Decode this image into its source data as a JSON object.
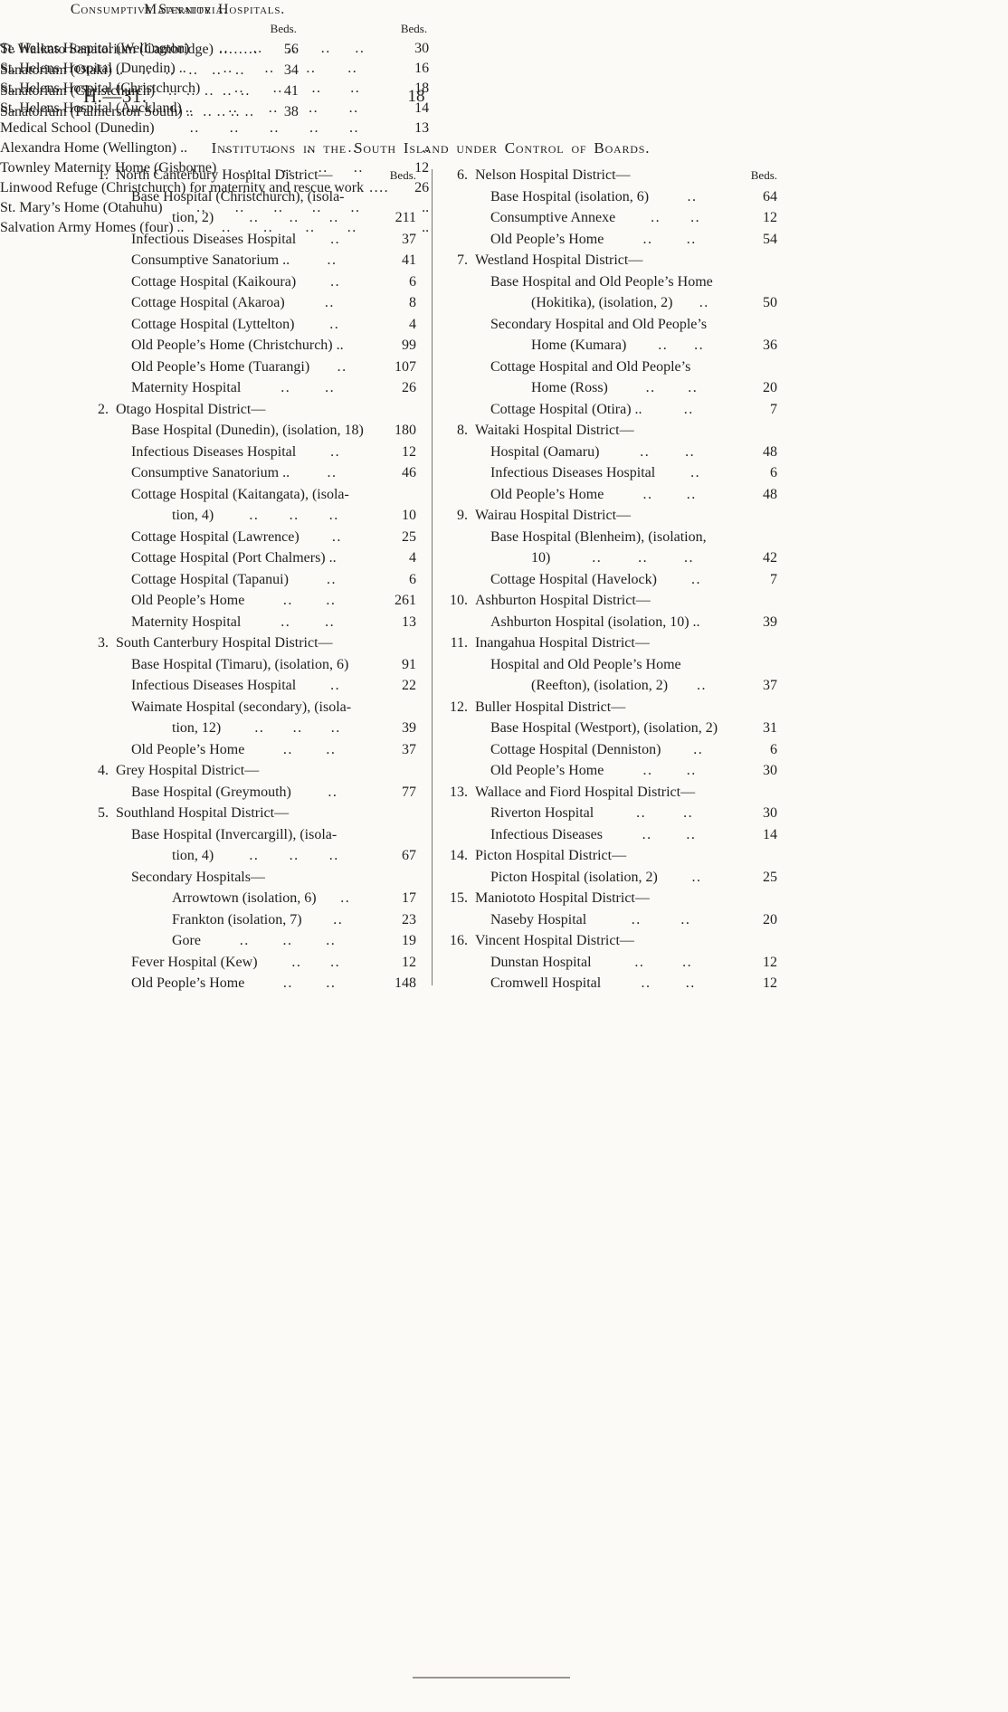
{
  "page": {
    "doc_ref": "H.—31.",
    "page_number": "18"
  },
  "boards": {
    "title": "Institutions in the South Island under Control of Boards.",
    "beds_label": "Beds.",
    "columns": [
      [
        {
          "num": "1.",
          "name": "North Canterbury Hospital District—",
          "rows": [
            {
              "t": "Base Hospital (Christchurch), (isola-",
              "i": 1,
              "d": 0,
              "b": ""
            },
            {
              "t": "tion, 2)",
              "i": 2,
              "d": 3,
              "b": "211"
            },
            {
              "t": "Infectious Diseases Hospital",
              "i": 1,
              "d": 1,
              "b": "37"
            },
            {
              "t": "Consumptive Sanatorium ..",
              "i": 1,
              "d": 1,
              "b": "41"
            },
            {
              "t": "Cottage Hospital (Kaikoura)",
              "i": 1,
              "d": 1,
              "b": "6"
            },
            {
              "t": "Cottage Hospital (Akaroa)",
              "i": 1,
              "d": 1,
              "b": "8"
            },
            {
              "t": "Cottage Hospital (Lyttelton)",
              "i": 1,
              "d": 1,
              "b": "4"
            },
            {
              "t": "Old People’s Home (Christchurch) ..",
              "i": 1,
              "d": 0,
              "b": "99"
            },
            {
              "t": "Old People’s Home (Tuarangi)",
              "i": 1,
              "d": 1,
              "b": "107"
            },
            {
              "t": "Maternity Hospital",
              "i": 1,
              "d": 2,
              "b": "26"
            }
          ]
        },
        {
          "num": "2.",
          "name": "Otago Hospital District—",
          "rows": [
            {
              "t": "Base Hospital (Dunedin), (isolation, 18)",
              "i": 1,
              "d": 0,
              "b": "180"
            },
            {
              "t": "Infectious Diseases Hospital",
              "i": 1,
              "d": 1,
              "b": "12"
            },
            {
              "t": "Consumptive Sanatorium ..",
              "i": 1,
              "d": 1,
              "b": "46"
            },
            {
              "t": "Cottage Hospital (Kaitangata), (isola-",
              "i": 1,
              "d": 0,
              "b": ""
            },
            {
              "t": "tion, 4)",
              "i": 2,
              "d": 3,
              "b": "10"
            },
            {
              "t": "Cottage Hospital (Lawrence)",
              "i": 1,
              "d": 1,
              "b": "25"
            },
            {
              "t": "Cottage Hospital (Port Chalmers) ..",
              "i": 1,
              "d": 0,
              "b": "4"
            },
            {
              "t": "Cottage Hospital (Tapanui)",
              "i": 1,
              "d": 1,
              "b": "6"
            },
            {
              "t": "Old People’s Home",
              "i": 1,
              "d": 2,
              "b": "261"
            },
            {
              "t": "Maternity Hospital",
              "i": 1,
              "d": 2,
              "b": "13"
            }
          ]
        },
        {
          "num": "3.",
          "name": "South Canterbury Hospital District—",
          "rows": [
            {
              "t": "Base Hospital (Timaru), (isolation, 6)",
              "i": 1,
              "d": 0,
              "b": "91"
            },
            {
              "t": "Infectious Diseases Hospital",
              "i": 1,
              "d": 1,
              "b": "22"
            },
            {
              "t": "Waimate Hospital (secondary), (isola-",
              "i": 1,
              "d": 0,
              "b": ""
            },
            {
              "t": "tion, 12)",
              "i": 2,
              "d": 3,
              "b": "39"
            },
            {
              "t": "Old People’s Home",
              "i": 1,
              "d": 2,
              "b": "37"
            }
          ]
        },
        {
          "num": "4.",
          "name": "Grey Hospital District—",
          "rows": [
            {
              "t": "Base Hospital (Greymouth)",
              "i": 1,
              "d": 1,
              "b": "77"
            }
          ]
        },
        {
          "num": "5.",
          "name": "Southland Hospital District—",
          "rows": [
            {
              "t": "Base Hospital (Invercargill), (isola-",
              "i": 1,
              "d": 0,
              "b": ""
            },
            {
              "t": "tion, 4)",
              "i": 2,
              "d": 3,
              "b": "67"
            },
            {
              "t": "Secondary Hospitals—",
              "i": 1,
              "d": 0,
              "b": ""
            },
            {
              "t": "Arrowtown (isolation, 6)",
              "i": 2,
              "d": 1,
              "b": "17"
            },
            {
              "t": "Frankton (isolation, 7)",
              "i": 2,
              "d": 1,
              "b": "23"
            },
            {
              "t": "Gore",
              "i": 2,
              "d": 3,
              "b": "19"
            },
            {
              "t": "Fever Hospital (Kew)",
              "i": 1,
              "d": 2,
              "b": "12"
            },
            {
              "t": "Old People’s Home",
              "i": 1,
              "d": 2,
              "b": "148"
            }
          ]
        }
      ],
      [
        {
          "num": "6.",
          "name": "Nelson Hospital District—",
          "rows": [
            {
              "t": "Base Hospital (isolation, 6)",
              "i": 1,
              "d": 1,
              "b": "64"
            },
            {
              "t": "Consumptive Annexe",
              "i": 1,
              "d": 2,
              "b": "12"
            },
            {
              "t": "Old People’s Home",
              "i": 1,
              "d": 2,
              "b": "54"
            }
          ]
        },
        {
          "num": "7.",
          "name": "Westland Hospital District—",
          "rows": [
            {
              "t": "Base Hospital and Old People’s Home",
              "i": 1,
              "d": 0,
              "b": ""
            },
            {
              "t": "(Hokitika), (isolation, 2)",
              "i": 2,
              "d": 1,
              "b": "50"
            },
            {
              "t": "Secondary Hospital and Old People’s",
              "i": 1,
              "d": 0,
              "b": ""
            },
            {
              "t": "Home (Kumara)",
              "i": 2,
              "d": 2,
              "b": "36"
            },
            {
              "t": "Cottage Hospital and Old People’s",
              "i": 1,
              "d": 0,
              "b": ""
            },
            {
              "t": "Home (Ross)",
              "i": 2,
              "d": 2,
              "b": "20"
            },
            {
              "t": "Cottage Hospital (Otira) ..",
              "i": 1,
              "d": 1,
              "b": "7"
            }
          ]
        },
        {
          "num": "8.",
          "name": "Waitaki Hospital District—",
          "rows": [
            {
              "t": "Hospital (Oamaru)",
              "i": 1,
              "d": 2,
              "b": "48"
            },
            {
              "t": "Infectious Diseases Hospital",
              "i": 1,
              "d": 1,
              "b": "6"
            },
            {
              "t": "Old People’s Home",
              "i": 1,
              "d": 2,
              "b": "48"
            }
          ]
        },
        {
          "num": "9.",
          "name": "Wairau Hospital District—",
          "rows": [
            {
              "t": "Base Hospital (Blenheim), (isolation,",
              "i": 1,
              "d": 0,
              "b": ""
            },
            {
              "t": "10)",
              "i": 2,
              "d": 3,
              "b": "42"
            },
            {
              "t": "Cottage Hospital (Havelock)",
              "i": 1,
              "d": 1,
              "b": "7"
            }
          ]
        },
        {
          "num": "10.",
          "name": "Ashburton Hospital District—",
          "rows": [
            {
              "t": "Ashburton Hospital (isolation, 10) ..",
              "i": 1,
              "d": 0,
              "b": "39"
            }
          ]
        },
        {
          "num": "11.",
          "name": "Inangahua Hospital District—",
          "rows": [
            {
              "t": "Hospital and Old People’s Home",
              "i": 1,
              "d": 0,
              "b": ""
            },
            {
              "t": "(Reefton), (isolation, 2)",
              "i": 2,
              "d": 1,
              "b": "37"
            }
          ]
        },
        {
          "num": "12.",
          "name": "Buller Hospital District—",
          "rows": [
            {
              "t": "Base Hospital (Westport), (isolation, 2)",
              "i": 1,
              "d": 0,
              "b": "31"
            },
            {
              "t": "Cottage Hospital (Denniston)",
              "i": 1,
              "d": 1,
              "b": "6"
            },
            {
              "t": "Old People’s Home",
              "i": 1,
              "d": 2,
              "b": "30"
            }
          ]
        },
        {
          "num": "13.",
          "name": "Wallace and Fiord Hospital District—",
          "rows": [
            {
              "t": "Riverton Hospital",
              "i": 1,
              "d": 2,
              "b": "30"
            },
            {
              "t": "Infectious Diseases",
              "i": 1,
              "d": 2,
              "b": "14"
            }
          ]
        },
        {
          "num": "14.",
          "name": "Picton Hospital District—",
          "rows": [
            {
              "t": "Picton Hospital (isolation, 2)",
              "i": 1,
              "d": 1,
              "b": "25"
            }
          ]
        },
        {
          "num": "15.",
          "name": "Maniototo Hospital District—",
          "rows": [
            {
              "t": "Naseby Hospital",
              "i": 1,
              "d": 2,
              "b": "20"
            }
          ]
        },
        {
          "num": "16.",
          "name": "Vincent Hospital District—",
          "rows": [
            {
              "t": "Dunstan Hospital",
              "i": 1,
              "d": 2,
              "b": "12"
            },
            {
              "t": "Cromwell Hospital",
              "i": 1,
              "d": 2,
              "b": "12"
            }
          ]
        }
      ]
    ]
  },
  "maternity": {
    "title": "Maternity Hospitals.",
    "beds_label": "Beds.",
    "rows": [
      {
        "label": "St. Helens Hospital (Wellington)",
        "dots": 5,
        "beds": "30"
      },
      {
        "label": "St. Helens Hospital (Dunedin) ..",
        "dots": 4,
        "beds": "16"
      },
      {
        "label": "St. Helens Hospital (Christchurch)",
        "dots": 4,
        "beds": "18"
      },
      {
        "label": "St. Helens Hospital (Auckland) ..",
        "dots": 4,
        "beds": "14"
      },
      {
        "label": "Medical School (Dunedin)",
        "dots": 5,
        "beds": "13"
      },
      {
        "label": "Alexandra Home (Wellington) ..",
        "dots": 4,
        "beds": ".."
      },
      {
        "label": "Townley Maternity Home (Gisborne)",
        "dots": 4,
        "beds": "12"
      },
      {
        "label": "Linwood Refuge (Christchurch) for maternity and rescue work",
        "dots": 2,
        "beds": "26"
      },
      {
        "label": "St. Mary’s Home (Otahuhu)",
        "dots": 5,
        "beds": ".."
      },
      {
        "label": "Salvation Army Homes (four) ..",
        "dots": 4,
        "beds": ".."
      }
    ]
  },
  "sanatoria": {
    "title": "Consumptive Sanatoria.",
    "beds_label": "Beds.",
    "rows": [
      {
        "label": "Te Waikato Sanatorium (Cambridge)",
        "dots": 4,
        "beds": "56"
      },
      {
        "label": "Sanatorium (Otaki) ..",
        "dots": 5,
        "beds": "34"
      },
      {
        "label": "Sanatorium (Christchurch)",
        "dots": 5,
        "beds": "41"
      },
      {
        "label": "Sanatorium (Palmerston South) ..",
        "dots": 4,
        "beds": "38"
      }
    ]
  }
}
